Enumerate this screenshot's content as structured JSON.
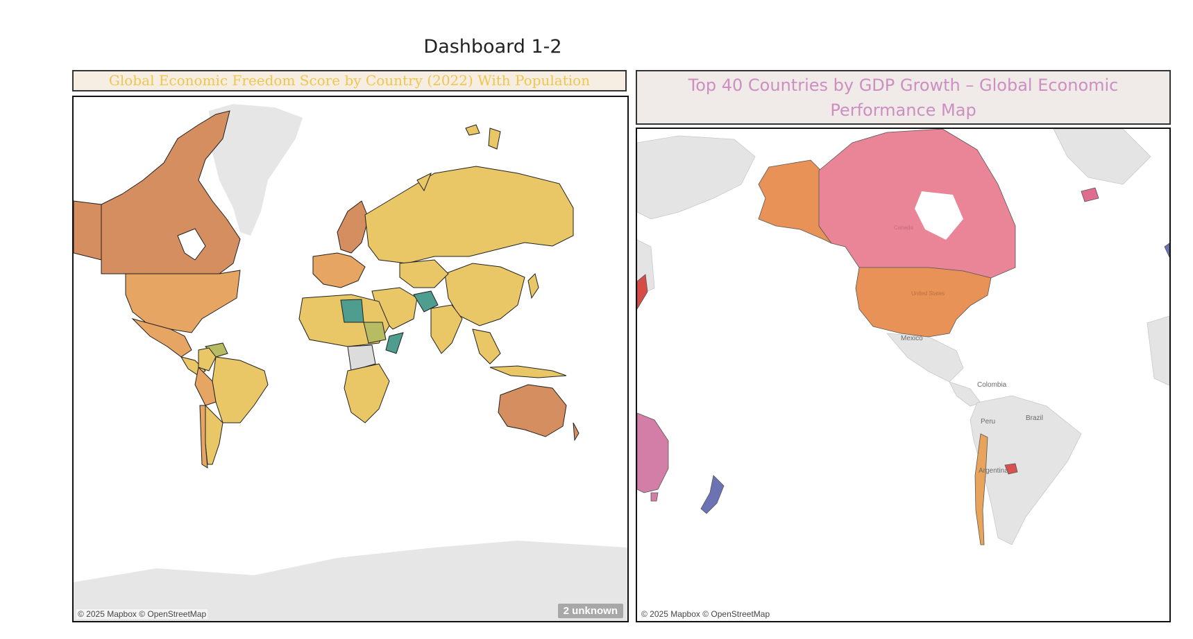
{
  "dashboard": {
    "title": "Dashboard 1-2"
  },
  "left_panel": {
    "title": "Global Economic Freedom Score by Country (2022) With Population",
    "attribution": "© 2025 Mapbox © OpenStreetMap",
    "unknown_badge": "2 unknown",
    "colors": {
      "low": "#4f9d8f",
      "mid_low": "#b7bc63",
      "mid": "#e9c766",
      "mid_high": "#e6a563",
      "high": "#d58e60",
      "no_data": "#dcdcdc",
      "land_base": "#e6e6e6",
      "border": "#1f1f1f"
    }
  },
  "right_panel": {
    "title": "Top 40 Countries by GDP Growth – Global Economic Performance Map",
    "attribution": "© 2025 Mapbox © OpenStreetMap",
    "base_labels": {
      "mexico": "Mexico",
      "colombia": "Colombia",
      "peru": "Peru",
      "brazil": "Brazil",
      "argentina": "Argentina",
      "canada": "Canada",
      "united_states": "United States"
    },
    "colors": {
      "canada": "#ea8597",
      "united_states": "#e99257",
      "alaska": "#e99257",
      "chile": "#e9a45c",
      "uruguay": "#d95050",
      "australia": "#d37ea6",
      "new_zealand": "#6b73b4",
      "iceland": "#e06c8f",
      "japan_edge": "#d74b47",
      "land_base": "#e4e4e4"
    }
  }
}
